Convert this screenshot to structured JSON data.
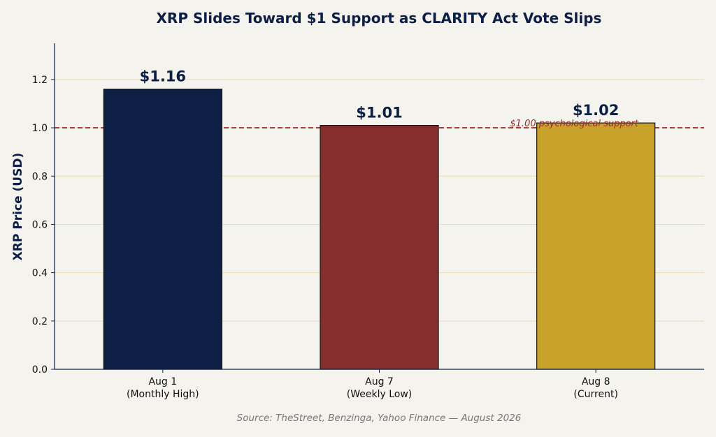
{
  "chart_data": {
    "type": "bar",
    "title": "XRP Slides Toward $1 Support as CLARITY Act Vote Slips",
    "xlabel": "",
    "ylabel": "XRP Price (USD)",
    "ylim": [
      0,
      1.35
    ],
    "yticks": [
      "0.0",
      "0.2",
      "0.4",
      "0.6",
      "0.8",
      "1.0",
      "1.2"
    ],
    "grid": true,
    "categories": [
      [
        "Aug 1",
        "(Monthly High)"
      ],
      [
        "Aug 7",
        "(Weekly Low)"
      ],
      [
        "Aug 8",
        "(Current)"
      ]
    ],
    "values": [
      1.16,
      1.01,
      1.02
    ],
    "data_labels": [
      "$1.16",
      "$1.01",
      "$1.02"
    ],
    "bar_colors": [
      "#0d1f44",
      "#862e2e",
      "#c9a22c"
    ],
    "reference_line": {
      "value": 1.0,
      "label": "$1.00 psychological support",
      "color": "#9b2c2c"
    },
    "grid_color": "#ecdcae",
    "source_note": "Source: TheStreet, Benzinga, Yahoo Finance — August 2026"
  }
}
